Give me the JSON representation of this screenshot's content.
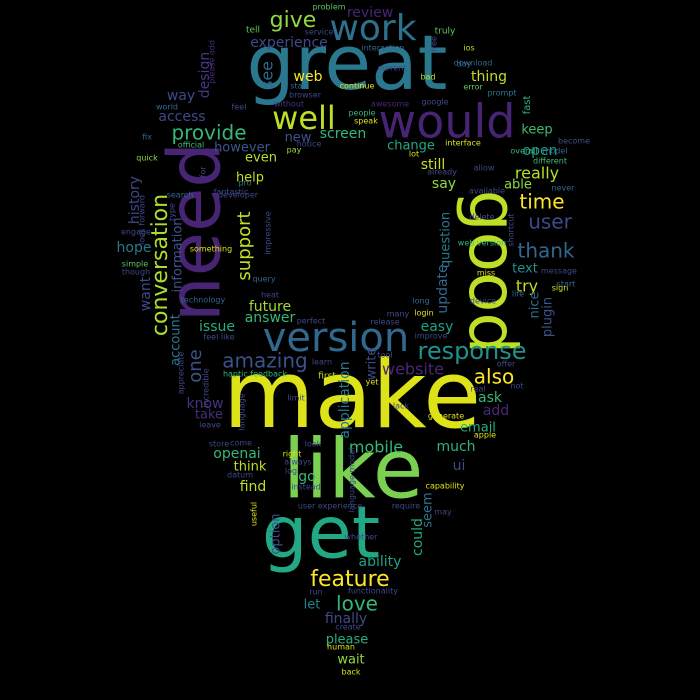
{
  "words": [
    {
      "text": "make",
      "color": "#dde318"
    },
    {
      "text": "great",
      "color": "#2a788e"
    },
    {
      "text": "like",
      "color": "#7ad151"
    },
    {
      "text": "good",
      "color": "#bddf26"
    },
    {
      "text": "need",
      "color": "#482475"
    },
    {
      "text": "get",
      "color": "#22a884"
    },
    {
      "text": "would",
      "color": "#482475"
    },
    {
      "text": "version",
      "color": "#31688e"
    },
    {
      "text": "work",
      "color": "#2c728e"
    },
    {
      "text": "well",
      "color": "#bddf26"
    },
    {
      "text": "response",
      "color": "#21918c"
    },
    {
      "text": "conversation",
      "color": "#addc30"
    },
    {
      "text": "feature",
      "color": "#fde725"
    },
    {
      "text": "give",
      "color": "#90d743"
    },
    {
      "text": "provide",
      "color": "#35b779"
    },
    {
      "text": "amazing",
      "color": "#3b528b"
    },
    {
      "text": "support",
      "color": "#bddf26"
    },
    {
      "text": "thank",
      "color": "#31688e"
    },
    {
      "text": "user",
      "color": "#3e4989"
    },
    {
      "text": "time",
      "color": "#fde725"
    },
    {
      "text": "love",
      "color": "#35b779"
    },
    {
      "text": "also",
      "color": "#fde725"
    },
    {
      "text": "really",
      "color": "#b5de2b"
    },
    {
      "text": "one",
      "color": "#3b528b"
    },
    {
      "text": "application",
      "color": "#2a788e"
    },
    {
      "text": "website",
      "color": "#482878"
    },
    {
      "text": "mobile",
      "color": "#35b779"
    },
    {
      "text": "update",
      "color": "#31688e"
    },
    {
      "text": "screen",
      "color": "#35b779"
    },
    {
      "text": "experience",
      "color": "#3e4989"
    },
    {
      "text": "review",
      "color": "#482475"
    },
    {
      "text": "see",
      "color": "#31688e"
    },
    {
      "text": "web",
      "color": "#fde725"
    },
    {
      "text": "thing",
      "color": "#c2df23"
    },
    {
      "text": "design",
      "color": "#443983"
    },
    {
      "text": "access",
      "color": "#3e4989"
    },
    {
      "text": "way",
      "color": "#3e4989"
    },
    {
      "text": "new",
      "color": "#3b528b"
    },
    {
      "text": "however",
      "color": "#38588c"
    },
    {
      "text": "even",
      "color": "#b5de2b"
    },
    {
      "text": "help",
      "color": "#c2df23"
    },
    {
      "text": "change",
      "color": "#22a884"
    },
    {
      "text": "still",
      "color": "#c8e020"
    },
    {
      "text": "say",
      "color": "#90d743"
    },
    {
      "text": "question",
      "color": "#2a788e"
    },
    {
      "text": "open",
      "color": "#1f9a8a"
    },
    {
      "text": "keep",
      "color": "#3fbc73"
    },
    {
      "text": "able",
      "color": "#90d743"
    },
    {
      "text": "history",
      "color": "#3e4989"
    },
    {
      "text": "hope",
      "color": "#2a788e"
    },
    {
      "text": "want",
      "color": "#3e4989"
    },
    {
      "text": "information",
      "color": "#3b528b"
    },
    {
      "text": "account",
      "color": "#2a788e"
    },
    {
      "text": "future",
      "color": "#a0da39"
    },
    {
      "text": "answer",
      "color": "#35b779"
    },
    {
      "text": "issue",
      "color": "#27ad81"
    },
    {
      "text": "easy",
      "color": "#1fa088"
    },
    {
      "text": "try",
      "color": "#c2df23"
    },
    {
      "text": "text",
      "color": "#21918c"
    },
    {
      "text": "plugin",
      "color": "#3b528b"
    },
    {
      "text": "nice",
      "color": "#31688e"
    },
    {
      "text": "ask",
      "color": "#35b779"
    },
    {
      "text": "add",
      "color": "#482878"
    },
    {
      "text": "email",
      "color": "#29af7f"
    },
    {
      "text": "much",
      "color": "#2fb47c"
    },
    {
      "text": "ui",
      "color": "#3e4989"
    },
    {
      "text": "know",
      "color": "#46327e"
    },
    {
      "text": "take",
      "color": "#472d7b"
    },
    {
      "text": "openai",
      "color": "#35b779"
    },
    {
      "text": "think",
      "color": "#c2df23"
    },
    {
      "text": "find",
      "color": "#bddf26"
    },
    {
      "text": "go",
      "color": "#35b779"
    },
    {
      "text": "option",
      "color": "#3b528b"
    },
    {
      "text": "could",
      "color": "#22a884"
    },
    {
      "text": "seem",
      "color": "#2c728e"
    },
    {
      "text": "ability",
      "color": "#20a386"
    },
    {
      "text": "let",
      "color": "#26828e"
    },
    {
      "text": "finally",
      "color": "#3e4989"
    },
    {
      "text": "please",
      "color": "#29af7f"
    },
    {
      "text": "wait",
      "color": "#90d743"
    },
    {
      "text": "write",
      "color": "#3e4989"
    },
    {
      "text": "first",
      "color": "#c2df23"
    },
    {
      "text": "tell",
      "color": "#5ec962"
    },
    {
      "text": "problem",
      "color": "#5ec962"
    },
    {
      "text": "service",
      "color": "#3e4989"
    },
    {
      "text": "truly",
      "color": "#5ec962"
    },
    {
      "text": "day",
      "color": "#31688e"
    },
    {
      "text": "ios",
      "color": "#c2df23"
    },
    {
      "text": "interaction",
      "color": "#31688e"
    },
    {
      "text": "download",
      "color": "#31688e"
    },
    {
      "text": "current",
      "color": "#3e4989"
    },
    {
      "text": "bad",
      "color": "#bddf26"
    },
    {
      "text": "error",
      "color": "#5ec962"
    },
    {
      "text": "prompt",
      "color": "#2a788e"
    },
    {
      "text": "fast",
      "color": "#2fb47c"
    },
    {
      "text": "star",
      "color": "#31688e"
    },
    {
      "text": "browser",
      "color": "#3e4989"
    },
    {
      "text": "continue",
      "color": "#dde318"
    },
    {
      "text": "awesome",
      "color": "#482878"
    },
    {
      "text": "google",
      "color": "#3e4989"
    },
    {
      "text": "speak",
      "color": "#dde318"
    },
    {
      "text": "people",
      "color": "#35b779"
    },
    {
      "text": "without",
      "color": "#46327e"
    },
    {
      "text": "feel",
      "color": "#3e4989"
    },
    {
      "text": "world",
      "color": "#31688e"
    },
    {
      "text": "fix",
      "color": "#31688e"
    },
    {
      "text": "official",
      "color": "#3fbc73"
    },
    {
      "text": "quick",
      "color": "#90d743"
    },
    {
      "text": "pay",
      "color": "#a0da39"
    },
    {
      "text": "interface",
      "color": "#dde318"
    },
    {
      "text": "lot",
      "color": "#dde318"
    },
    {
      "text": "already",
      "color": "#3e4989"
    },
    {
      "text": "allow",
      "color": "#3e4989"
    },
    {
      "text": "overall",
      "color": "#35b779"
    },
    {
      "text": "model",
      "color": "#31688e"
    },
    {
      "text": "different",
      "color": "#3fbc73"
    },
    {
      "text": "never",
      "color": "#31688e"
    },
    {
      "text": "become",
      "color": "#3b528b"
    },
    {
      "text": "available",
      "color": "#3e4989"
    },
    {
      "text": "search",
      "color": "#31688e"
    },
    {
      "text": "developer",
      "color": "#3e4989"
    },
    {
      "text": "pro",
      "color": "#2a788e"
    },
    {
      "text": "type",
      "color": "#3e4989"
    },
    {
      "text": "something",
      "color": "#dde318"
    },
    {
      "text": "delete",
      "color": "#3e4989"
    },
    {
      "text": "shortcut",
      "color": "#3e4989"
    },
    {
      "text": "engage",
      "color": "#3e4989"
    },
    {
      "text": "simple",
      "color": "#5ec962"
    },
    {
      "text": "though",
      "color": "#3e4989"
    },
    {
      "text": "query",
      "color": "#31688e"
    },
    {
      "text": "heat",
      "color": "#3e4989"
    },
    {
      "text": "technology",
      "color": "#31688e"
    },
    {
      "text": "web version",
      "color": "#35b779"
    },
    {
      "text": "message",
      "color": "#3e4989"
    },
    {
      "text": "sign",
      "color": "#dde318"
    },
    {
      "text": "start",
      "color": "#31688e"
    },
    {
      "text": "life",
      "color": "#31688e"
    },
    {
      "text": "miss",
      "color": "#dde318"
    },
    {
      "text": "device",
      "color": "#3e4989"
    },
    {
      "text": "long",
      "color": "#31688e"
    },
    {
      "text": "login",
      "color": "#dde318"
    },
    {
      "text": "improve",
      "color": "#3e4989"
    },
    {
      "text": "many",
      "color": "#3e4989"
    },
    {
      "text": "release",
      "color": "#3e4989"
    },
    {
      "text": "perfect",
      "color": "#3e4989"
    },
    {
      "text": "feel like",
      "color": "#3e4989"
    },
    {
      "text": "haptic feedback",
      "color": "#35b779"
    },
    {
      "text": "learn",
      "color": "#3e4989"
    },
    {
      "text": "tool",
      "color": "#3e4989"
    },
    {
      "text": "yet",
      "color": "#dde318"
    },
    {
      "text": "limit",
      "color": "#3e4989"
    },
    {
      "text": "lack",
      "color": "#3e4989"
    },
    {
      "text": "generate",
      "color": "#dde318"
    },
    {
      "text": "apple",
      "color": "#dde318"
    },
    {
      "text": "look",
      "color": "#3e4989"
    },
    {
      "text": "right",
      "color": "#dde318"
    },
    {
      "text": "always",
      "color": "#3e4989"
    },
    {
      "text": "log",
      "color": "#3e4989"
    },
    {
      "text": "language",
      "color": "#3e4989"
    },
    {
      "text": "come",
      "color": "#3e4989"
    },
    {
      "text": "store",
      "color": "#3e4989"
    },
    {
      "text": "fantastic",
      "color": "#3e4989"
    },
    {
      "text": "leave",
      "color": "#3e4989"
    },
    {
      "text": "datum",
      "color": "#3e4989"
    },
    {
      "text": "capability",
      "color": "#dde318"
    },
    {
      "text": "instead",
      "color": "#3e4989"
    },
    {
      "text": "user experience",
      "color": "#3e4989"
    },
    {
      "text": "useful",
      "color": "#dde318"
    },
    {
      "text": "require",
      "color": "#3e4989"
    },
    {
      "text": "may",
      "color": "#3e4989"
    },
    {
      "text": "whether",
      "color": "#3e4989"
    },
    {
      "text": "run",
      "color": "#3e4989"
    },
    {
      "text": "functionality",
      "color": "#3e4989"
    },
    {
      "text": "create",
      "color": "#3e4989"
    },
    {
      "text": "human",
      "color": "#dde318"
    },
    {
      "text": "back",
      "color": "#dde318"
    },
    {
      "text": "please add",
      "color": "#482878"
    },
    {
      "text": "incredible",
      "color": "#3e4989"
    },
    {
      "text": "appreciate",
      "color": "#3e4989"
    },
    {
      "text": "impressive",
      "color": "#3e4989"
    },
    {
      "text": "free",
      "color": "#3e4989"
    },
    {
      "text": "for",
      "color": "#3e4989"
    },
    {
      "text": "offer",
      "color": "#3e4989"
    },
    {
      "text": "not",
      "color": "#3e4989"
    },
    {
      "text": "real",
      "color": "#3e4989"
    },
    {
      "text": "look forward",
      "color": "#3e4989"
    },
    {
      "text": "language model",
      "color": "#3e4989"
    },
    {
      "text": "notice",
      "color": "#3e4989"
    }
  ]
}
